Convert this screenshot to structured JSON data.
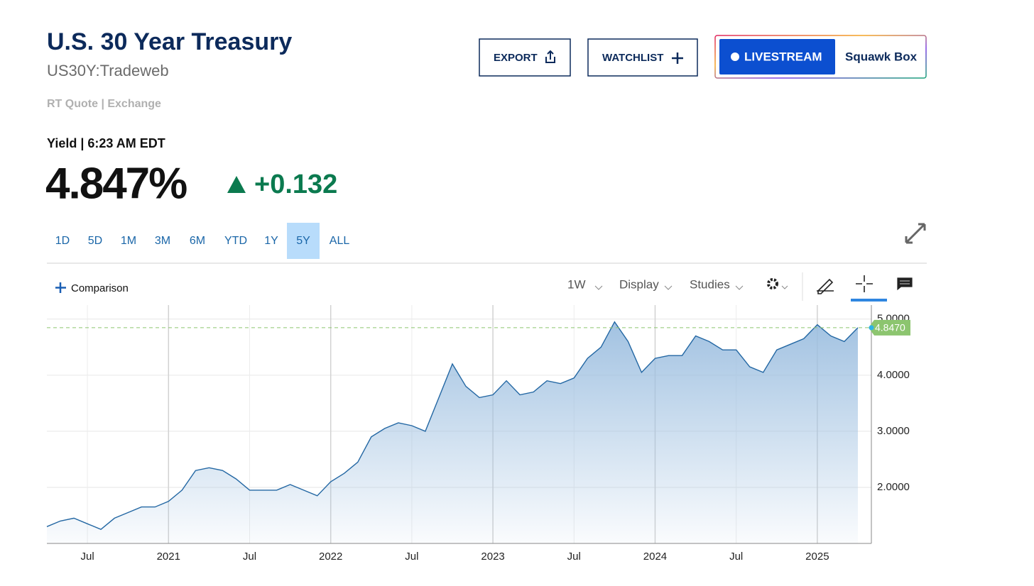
{
  "header": {
    "title": "U.S. 30 Year Treasury",
    "symbol": "US30Y:Tradeweb",
    "source": "RT Quote | Exchange",
    "quote_label": "Yield | 6:23 AM EDT",
    "last": "4.847%",
    "change": "+0.132"
  },
  "toolbar": {
    "buttons": [
      "EXPORT",
      "WATCHLIST"
    ],
    "livestream": "LIVESTREAM",
    "show": "Squawk Box",
    "ranges": [
      {
        "label": "1D",
        "selected": false
      },
      {
        "label": "5D",
        "selected": false
      },
      {
        "label": "1M",
        "selected": false
      },
      {
        "label": "3M",
        "selected": false
      },
      {
        "label": "6M",
        "selected": false
      },
      {
        "label": "YTD",
        "selected": false
      },
      {
        "label": "1Y",
        "selected": false
      },
      {
        "label": "5Y",
        "selected": true
      },
      {
        "label": "ALL",
        "selected": false
      }
    ],
    "comparison": "Comparison",
    "interval": "1W",
    "menus": [
      "Display",
      "Studies"
    ]
  },
  "chart_data": {
    "type": "area",
    "color": "#2367a3",
    "fill_color": "#9dbfe0",
    "x": [
      "2020-04",
      "2020-05",
      "2020-06",
      "2020-07",
      "2020-08",
      "2020-09",
      "2020-10",
      "2020-11",
      "2020-12",
      "2021-01",
      "2021-02",
      "2021-03",
      "2021-04",
      "2021-05",
      "2021-06",
      "2021-07",
      "2021-08",
      "2021-09",
      "2021-10",
      "2021-11",
      "2021-12",
      "2022-01",
      "2022-02",
      "2022-03",
      "2022-04",
      "2022-05",
      "2022-06",
      "2022-07",
      "2022-08",
      "2022-09",
      "2022-10",
      "2022-11",
      "2022-12",
      "2023-01",
      "2023-02",
      "2023-03",
      "2023-04",
      "2023-05",
      "2023-06",
      "2023-07",
      "2023-08",
      "2023-09",
      "2023-10",
      "2023-11",
      "2023-12",
      "2024-01",
      "2024-02",
      "2024-03",
      "2024-04",
      "2024-05",
      "2024-06",
      "2024-07",
      "2024-08",
      "2024-09",
      "2024-10",
      "2024-11",
      "2024-12",
      "2025-01",
      "2025-02",
      "2025-03",
      "2025-04"
    ],
    "values": [
      1.3,
      1.4,
      1.45,
      1.35,
      1.25,
      1.45,
      1.55,
      1.65,
      1.65,
      1.75,
      1.95,
      2.3,
      2.35,
      2.3,
      2.15,
      1.95,
      1.95,
      1.95,
      2.05,
      1.95,
      1.85,
      2.1,
      2.25,
      2.45,
      2.9,
      3.05,
      3.15,
      3.1,
      3.0,
      3.6,
      4.2,
      3.8,
      3.6,
      3.65,
      3.9,
      3.65,
      3.7,
      3.9,
      3.85,
      3.95,
      4.3,
      4.5,
      4.95,
      4.6,
      4.05,
      4.3,
      4.35,
      4.35,
      4.7,
      4.6,
      4.45,
      4.45,
      4.15,
      4.05,
      4.45,
      4.55,
      4.65,
      4.9,
      4.7,
      4.6,
      4.847
    ],
    "xlim": [
      "2020-04",
      "2025-05"
    ],
    "xticks": [
      {
        "value": "2020-07",
        "label": "Jul"
      },
      {
        "value": "2021-01",
        "label": "2021"
      },
      {
        "value": "2021-07",
        "label": "Jul"
      },
      {
        "value": "2022-01",
        "label": "2022"
      },
      {
        "value": "2022-07",
        "label": "Jul"
      },
      {
        "value": "2023-01",
        "label": "2023"
      },
      {
        "value": "2023-07",
        "label": "Jul"
      },
      {
        "value": "2024-01",
        "label": "2024"
      },
      {
        "value": "2024-07",
        "label": "Jul"
      },
      {
        "value": "2025-01",
        "label": "2025"
      }
    ],
    "ylim": [
      1,
      5.25
    ],
    "yticks": [
      {
        "value": 2,
        "label": "2.0000"
      },
      {
        "value": 3,
        "label": "3.0000"
      },
      {
        "value": 4,
        "label": "4.0000"
      },
      {
        "value": 5,
        "label": "5.0000"
      }
    ],
    "grid": true,
    "last_value": {
      "value": 4.847,
      "label": "4.8470"
    },
    "last_color": "#8cc56f"
  }
}
